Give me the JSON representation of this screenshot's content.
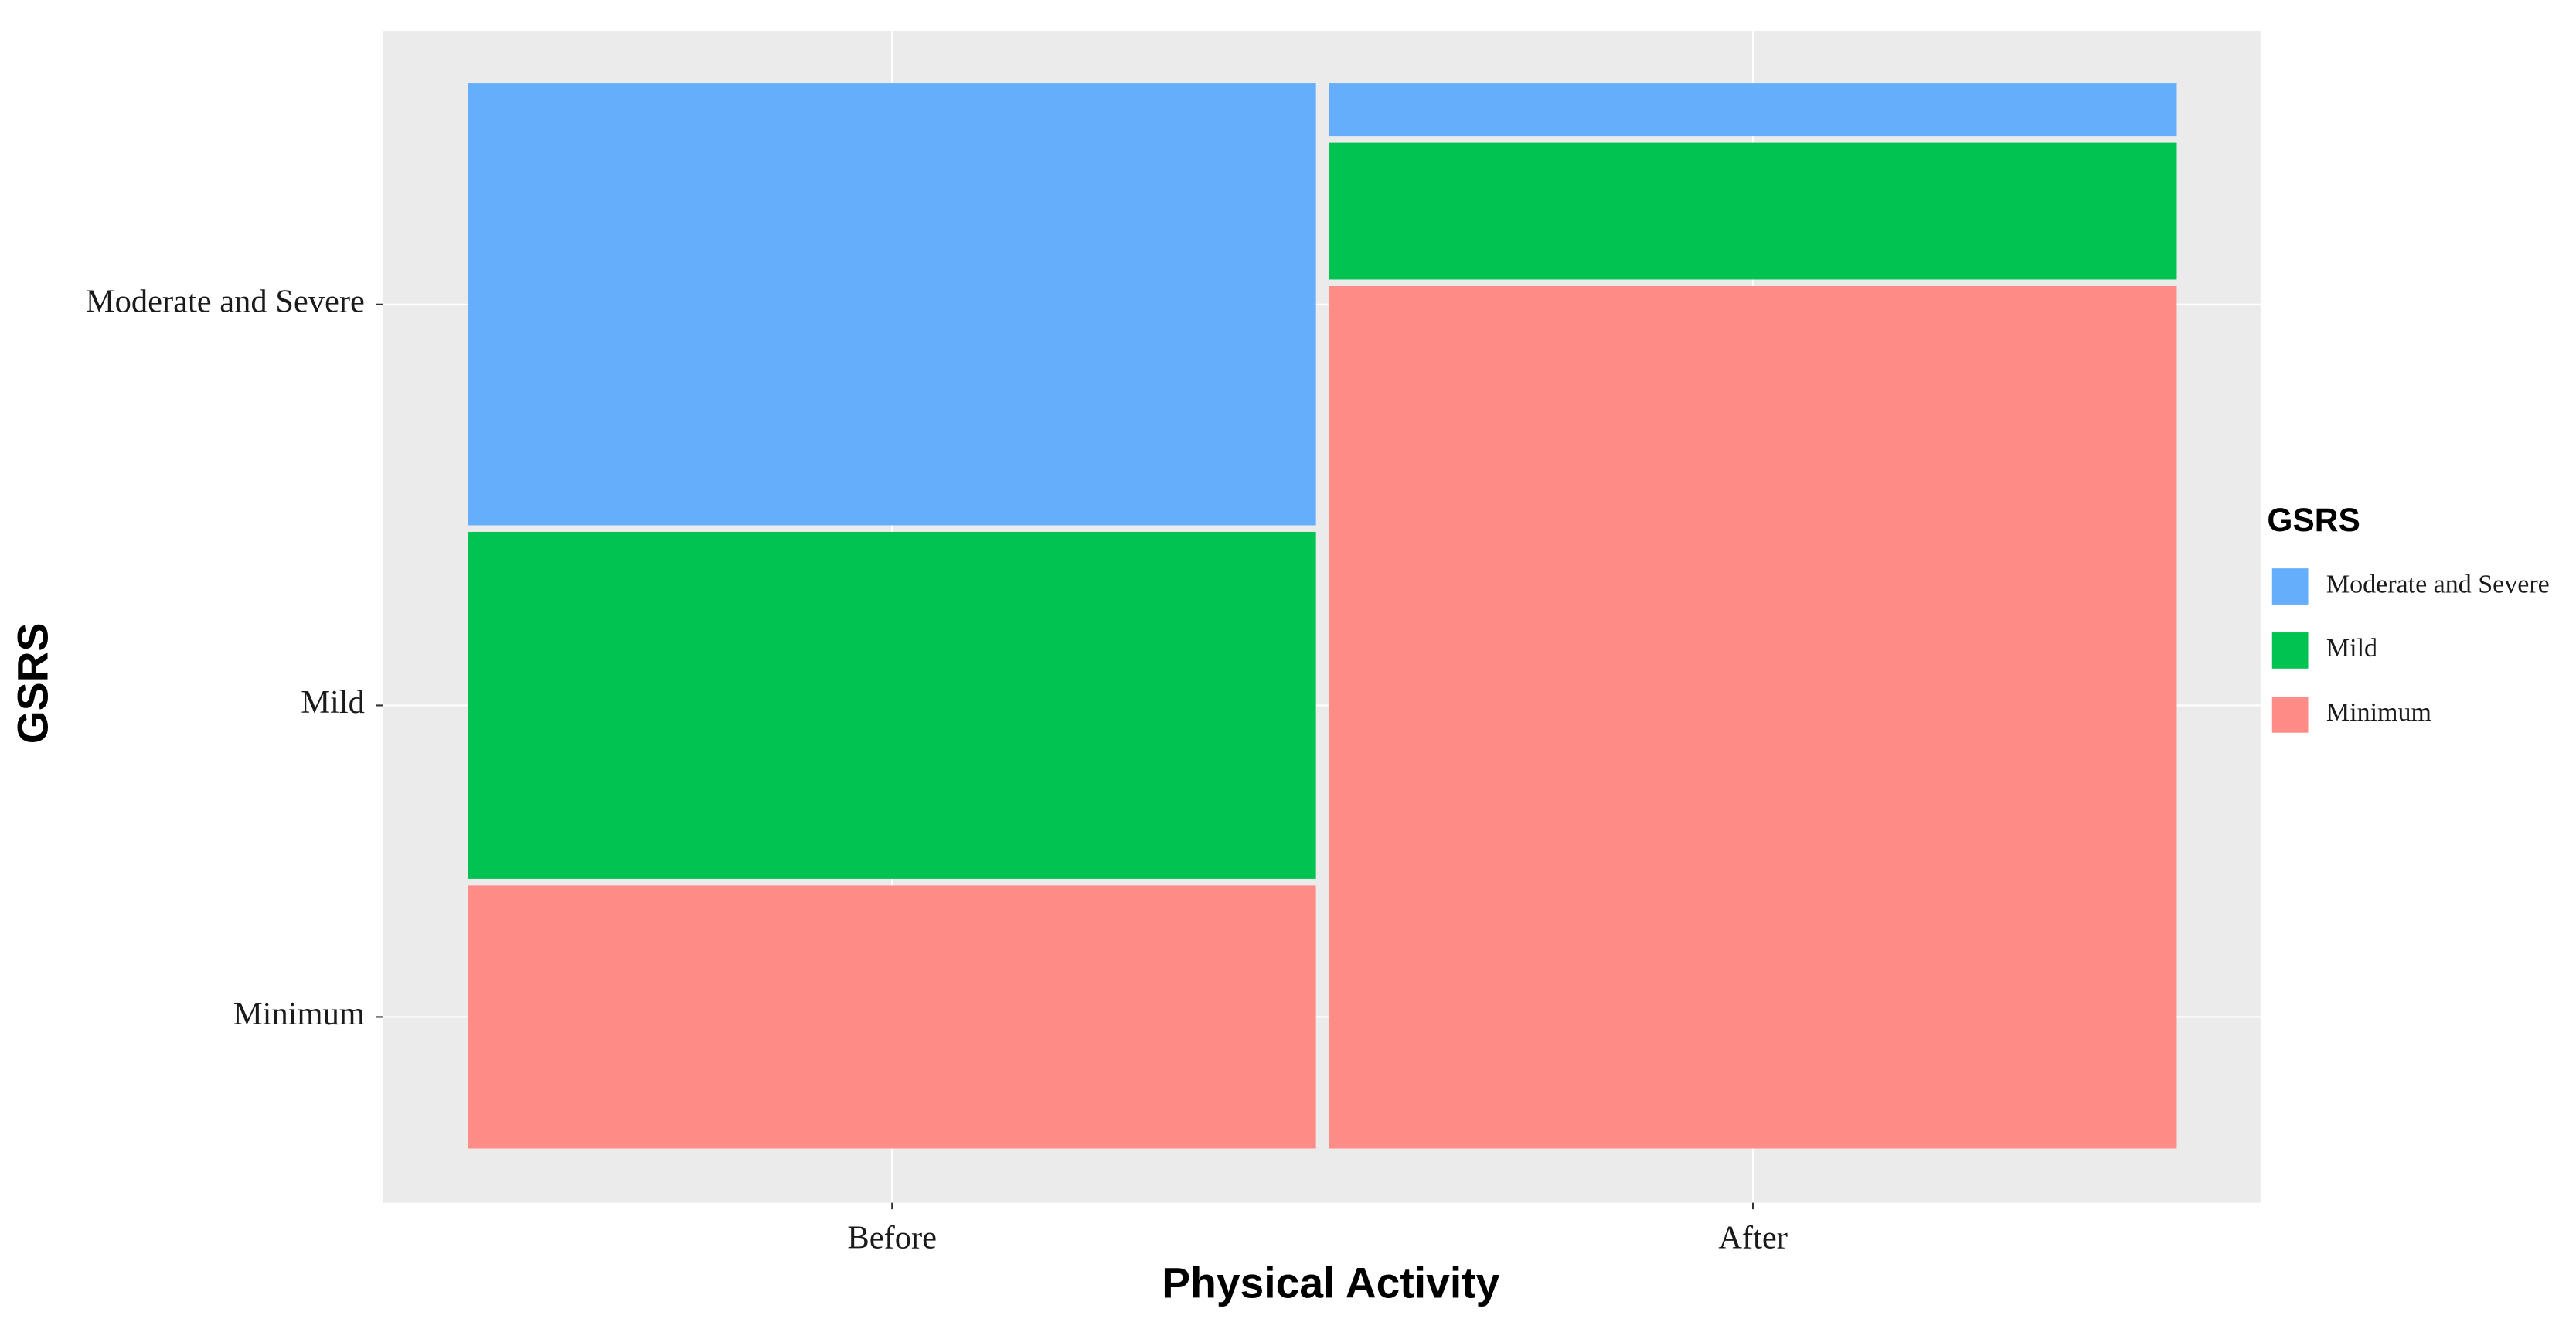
{
  "chart_data": {
    "type": "mosaic",
    "x_label": "Physical Activity",
    "y_label": "GSRS",
    "legend_title": "GSRS",
    "legend_position": "right",
    "categories": [
      "Before",
      "After"
    ],
    "series": [
      {
        "name": "Minimum",
        "color": "#ff8c86",
        "values": [
          25,
          82
        ]
      },
      {
        "name": "Mild",
        "color": "#00c352",
        "values": [
          33,
          13
        ]
      },
      {
        "name": "Moderate and Severe",
        "color": "#64aefc",
        "values": [
          42,
          5
        ]
      }
    ]
  }
}
